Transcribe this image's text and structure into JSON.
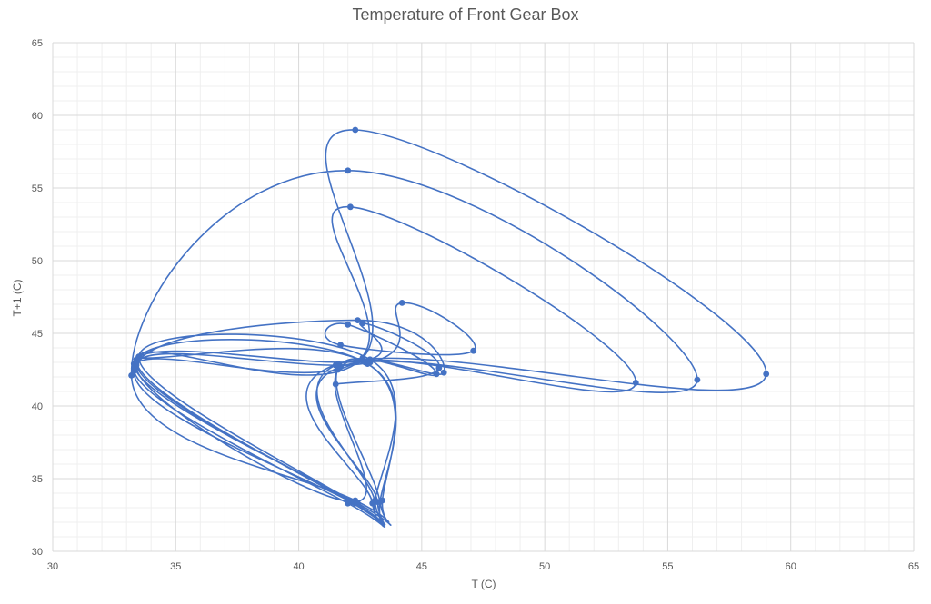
{
  "chart_data": {
    "type": "scatter",
    "title": "Temperature of Front Gear Box",
    "xlabel": "T (C)",
    "ylabel": "T+1 (C)",
    "xlim": [
      30,
      65
    ],
    "ylim": [
      30,
      65
    ],
    "x_ticks": [
      "30",
      "35",
      "40",
      "45",
      "50",
      "55",
      "60",
      "65"
    ],
    "y_ticks": [
      "30",
      "35",
      "40",
      "45",
      "50",
      "55",
      "60",
      "65"
    ],
    "grid": true,
    "minor_grid": true,
    "legend": "none",
    "style": "smoothed lines with markers",
    "series_color": "#4472C4",
    "grid_color": "#d9d9d9",
    "minor_grid_color": "#efefef",
    "series": [
      {
        "values": [
          [
            33.5,
            43.3
          ],
          [
            42.8,
            42.9
          ],
          [
            43.3,
            33.4
          ],
          [
            42.0,
            33.3
          ],
          [
            33.3,
            42.6
          ],
          [
            42.4,
            43.1
          ],
          [
            42.1,
            53.7
          ],
          [
            53.7,
            41.6
          ],
          [
            41.5,
            42.8
          ],
          [
            43.1,
            33.4
          ],
          [
            42.2,
            33.4
          ],
          [
            33.4,
            43.0
          ],
          [
            42.7,
            43.0
          ],
          [
            43.4,
            33.5
          ],
          [
            42.3,
            33.5
          ],
          [
            33.2,
            42.1
          ],
          [
            42.0,
            56.2
          ],
          [
            56.2,
            41.8
          ],
          [
            41.7,
            42.7
          ],
          [
            43.2,
            33.4
          ],
          [
            42.1,
            33.4
          ],
          [
            33.4,
            43.2
          ],
          [
            42.6,
            43.3
          ],
          [
            42.3,
            59.0
          ],
          [
            59.0,
            42.2
          ],
          [
            41.6,
            42.9
          ],
          [
            43.0,
            33.3
          ],
          [
            42.3,
            33.3
          ],
          [
            33.5,
            43.4
          ],
          [
            42.9,
            43.2
          ],
          [
            43.1,
            33.5
          ],
          [
            42.0,
            33.5
          ],
          [
            33.3,
            42.4
          ],
          [
            42.4,
            45.9
          ],
          [
            45.9,
            42.3
          ],
          [
            41.6,
            42.5
          ],
          [
            42.2,
            33.4
          ],
          [
            33.4,
            42.8
          ],
          [
            42.9,
            43.0
          ],
          [
            44.2,
            47.1
          ],
          [
            47.1,
            43.8
          ],
          [
            41.7,
            44.2
          ],
          [
            42.0,
            45.6
          ],
          [
            45.6,
            42.2
          ],
          [
            41.6,
            42.6
          ],
          [
            43.3,
            33.4
          ],
          [
            42.4,
            33.3
          ],
          [
            33.3,
            42.9
          ],
          [
            42.6,
            43.1
          ],
          [
            42.6,
            45.7
          ],
          [
            45.7,
            42.6
          ],
          [
            41.5,
            41.5
          ]
        ]
      }
    ]
  }
}
